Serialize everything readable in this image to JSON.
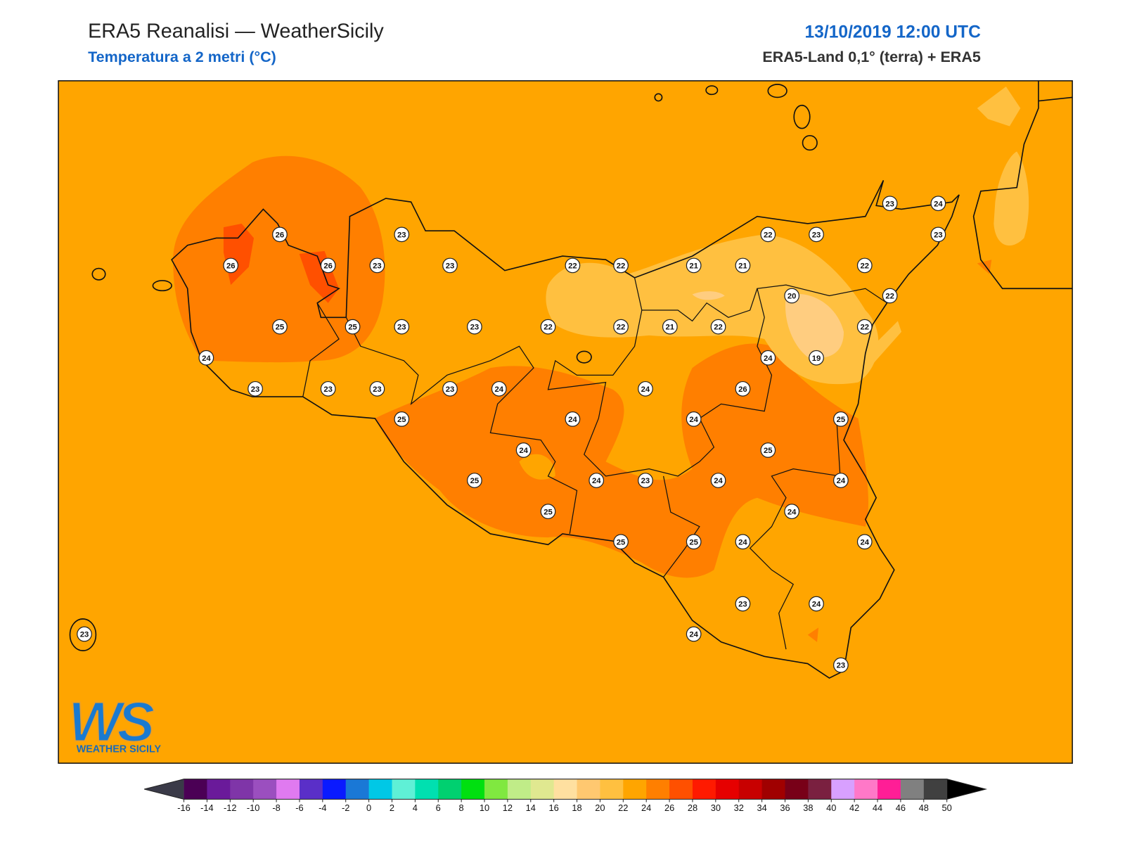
{
  "header": {
    "title": "ERA5 Reanalisi — WeatherSicily",
    "subtitle": "Temperatura a 2 metri (°C)",
    "datetime": "13/10/2019 12:00 UTC",
    "source": "ERA5-Land 0,1° (terra) + ERA5"
  },
  "stations": [
    26,
    23,
    26,
    26,
    23,
    23,
    22,
    22,
    21,
    21,
    22,
    23,
    22,
    23,
    24,
    23,
    22,
    20,
    25,
    25,
    23,
    23,
    22,
    22,
    21,
    22,
    22,
    24,
    24,
    19,
    23,
    23,
    23,
    23,
    24,
    24,
    26,
    25,
    24,
    24,
    25,
    24,
    25,
    25,
    24,
    23,
    24,
    24,
    25,
    24,
    25,
    25,
    24,
    24,
    23,
    24,
    24,
    23,
    23
  ],
  "colorbar": {
    "ticks": [
      -16,
      -14,
      -12,
      -10,
      -8,
      -6,
      -4,
      -2,
      0,
      2,
      4,
      6,
      8,
      10,
      12,
      14,
      16,
      18,
      20,
      22,
      24,
      26,
      28,
      30,
      32,
      34,
      36,
      38,
      40,
      42,
      44,
      46,
      48,
      50
    ],
    "colors": [
      "#4b0055",
      "#6a1a9a",
      "#7f35a8",
      "#9b4fbf",
      "#e07af0",
      "#5a2fc8",
      "#0a1aff",
      "#1a78d6",
      "#00c8e6",
      "#5ff0d6",
      "#00e0b0",
      "#00d070",
      "#00e010",
      "#80e840",
      "#c0ec88",
      "#e0e890",
      "#ffe0a0",
      "#ffc870",
      "#ffc040",
      "#ffa500",
      "#ff7f00",
      "#ff5000",
      "#ff1a00",
      "#e60000",
      "#c80000",
      "#a00000",
      "#780018",
      "#7a2040",
      "#d8a0ff",
      "#ff78c8",
      "#ff1e96",
      "#808080",
      "#404040"
    ],
    "under_color": "#3a3a48",
    "over_color": "#000000"
  },
  "logo": {
    "initials": "WS",
    "name": "WEATHER SICILY"
  }
}
